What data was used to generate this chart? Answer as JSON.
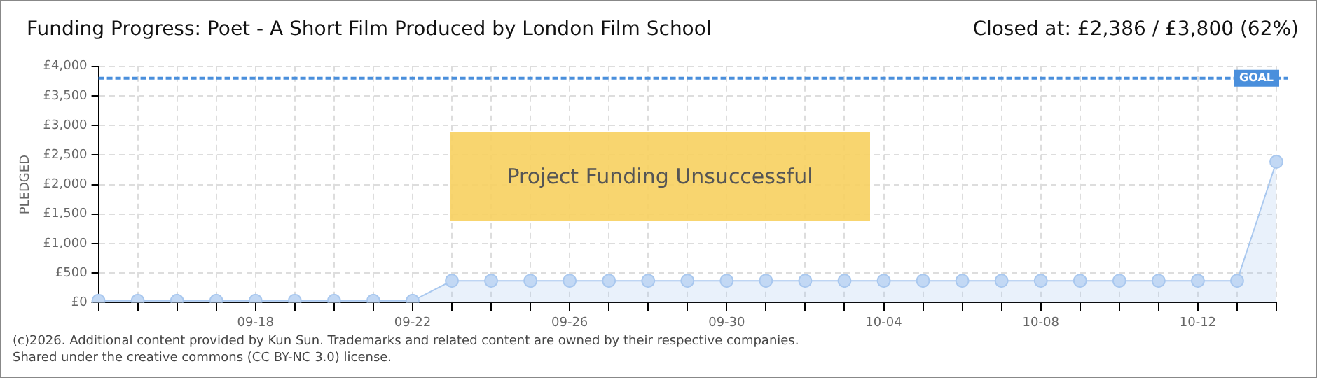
{
  "chart_data": {
    "type": "area",
    "title": "Funding Progress: Poet - A Short Film Produced by London Film School",
    "subtitle": "Closed at:  £2,386 / £3,800 (62%)",
    "ylabel": "PLEDGED",
    "categories": [
      null,
      null,
      null,
      null,
      "09-18",
      null,
      null,
      null,
      "09-22",
      null,
      null,
      null,
      "09-26",
      null,
      null,
      null,
      "09-30",
      null,
      null,
      null,
      "10-04",
      null,
      null,
      null,
      "10-08",
      null,
      null,
      null,
      "10-12",
      null,
      null
    ],
    "series": [
      {
        "color": "#a9c8ef",
        "values": [
          30,
          30,
          30,
          30,
          30,
          30,
          30,
          30,
          30,
          370,
          370,
          370,
          370,
          370,
          370,
          370,
          370,
          370,
          370,
          370,
          370,
          370,
          370,
          370,
          370,
          370,
          370,
          370,
          370,
          370,
          2386
        ]
      }
    ],
    "ylim": [
      0,
      4000
    ],
    "yticks": [
      {
        "value": 0,
        "label": "£0"
      },
      {
        "value": 500,
        "label": "£500"
      },
      {
        "value": 1000,
        "label": "£1,000"
      },
      {
        "value": 1500,
        "label": "£1,500"
      },
      {
        "value": 2000,
        "label": "£2,000"
      },
      {
        "value": 2500,
        "label": "£2,500"
      },
      {
        "value": 3000,
        "label": "£3,000"
      },
      {
        "value": 3500,
        "label": "£3,500"
      },
      {
        "value": 4000,
        "label": "£4,000"
      }
    ],
    "ref_lines": [
      {
        "axis": "y",
        "value": 3800,
        "label": "GOAL",
        "color": "#4a8fdc",
        "line_style": "dashed"
      }
    ],
    "annotations": [
      "Project Funding Unsuccessful",
      "(c)2026. Additional content provided by Kun Sun. Trademarks and related content are owned by their respective companies.",
      "Shared under the creative commons (CC BY-NC 3.0) license."
    ],
    "grid": true,
    "legend": false,
    "marker": "circle",
    "line_style": "solid"
  }
}
